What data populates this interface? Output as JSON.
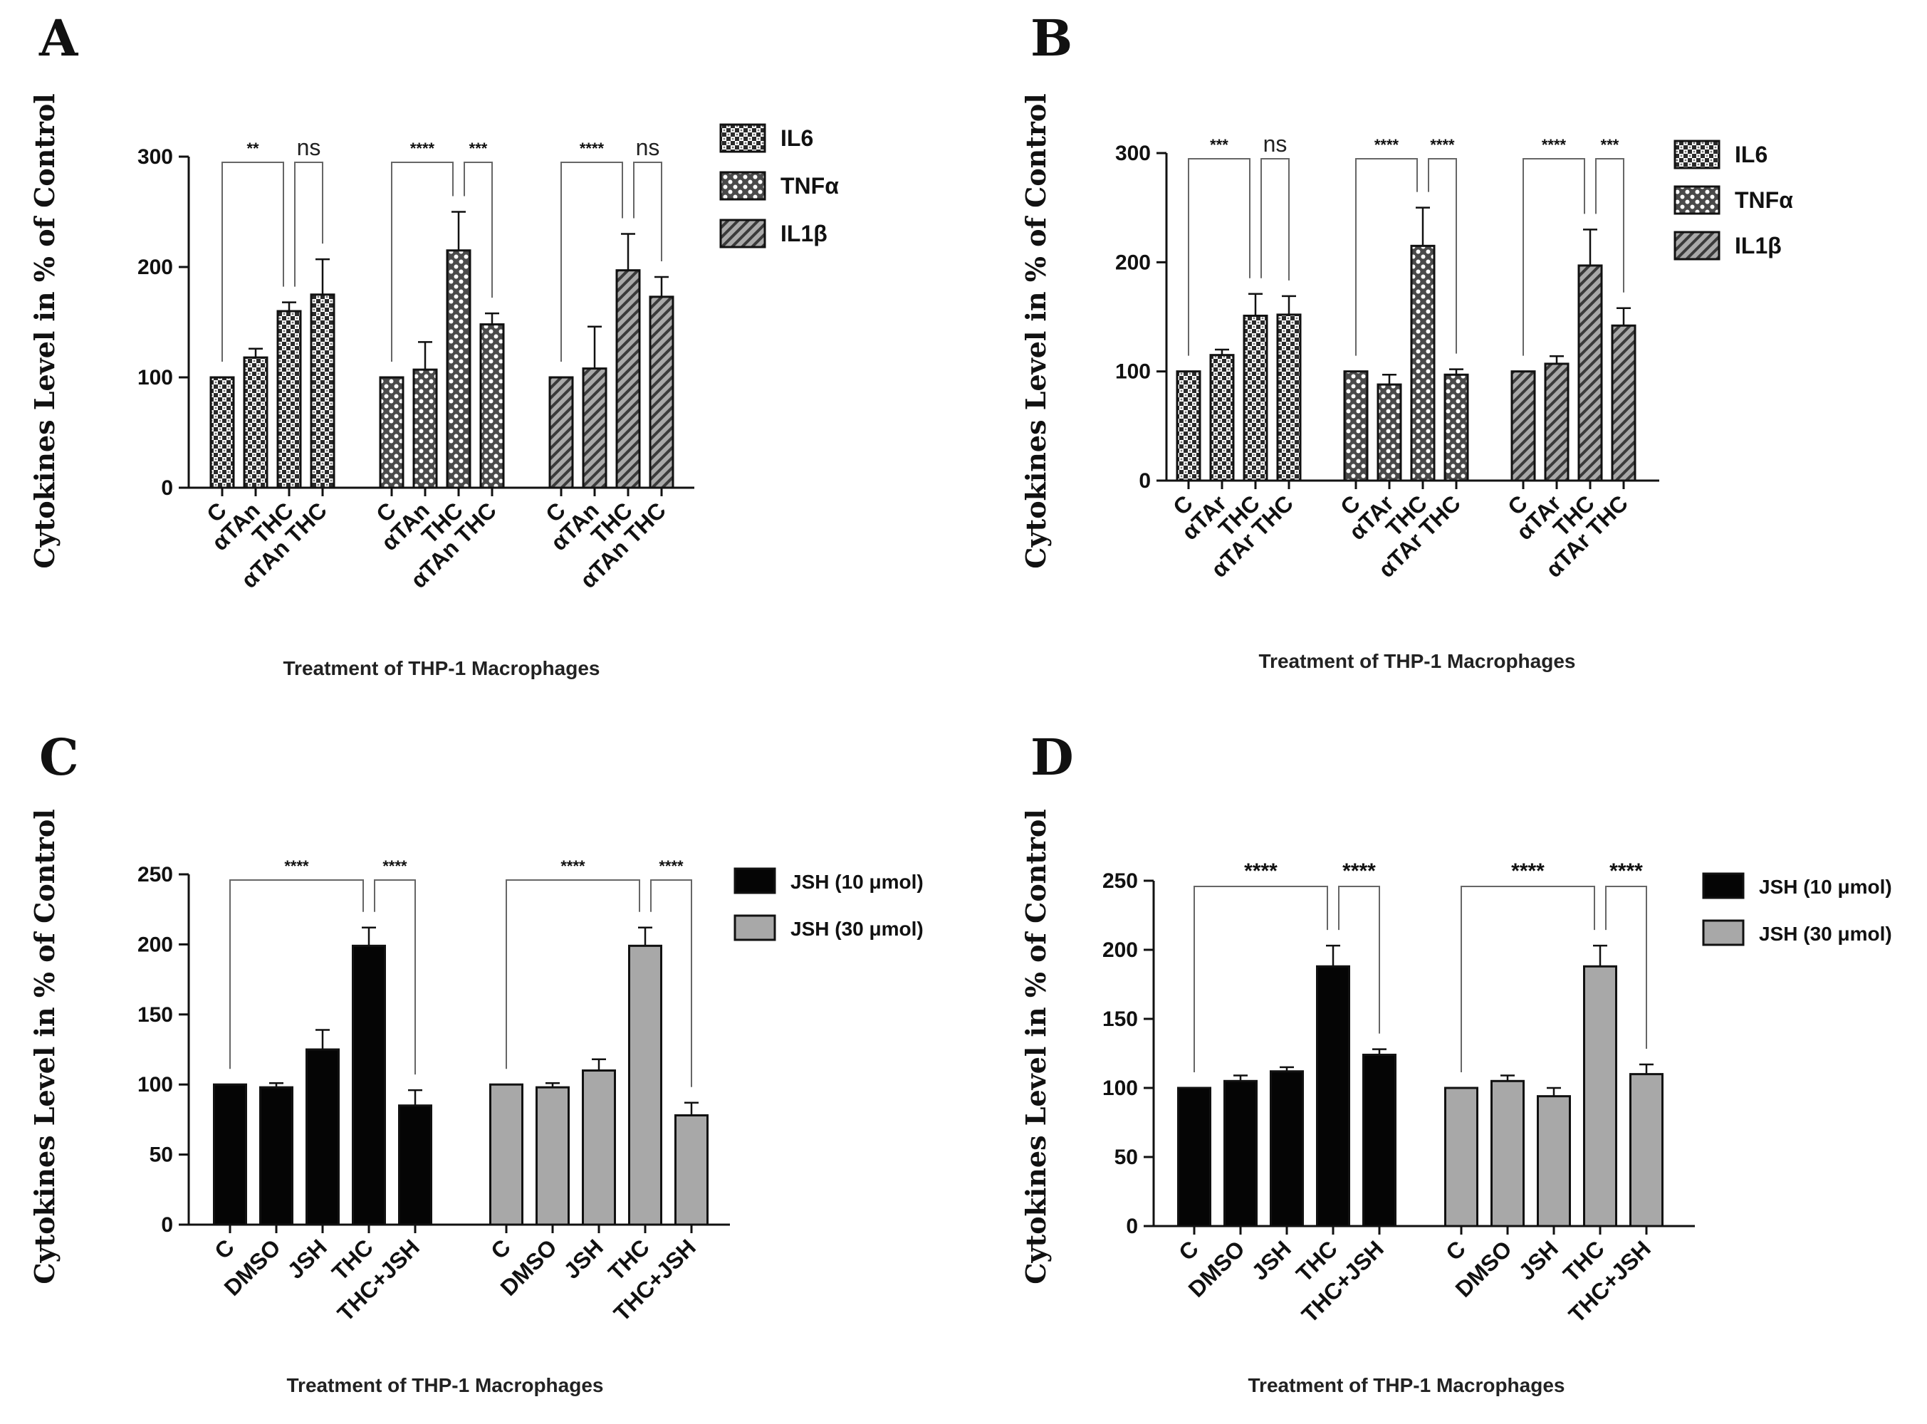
{
  "chart_data": [
    {
      "panel": "A",
      "type": "bar",
      "ylabel": "Cytokines Level  in % of Control",
      "xlabel": "Treatment of THP-1 Macrophages",
      "ylim": [
        0,
        300
      ],
      "yticks": [
        0,
        100,
        200,
        300
      ],
      "legend": [
        "IL6",
        "TNFα",
        "IL1β"
      ],
      "legend_position": "top-right",
      "groups": [
        {
          "name": "IL6",
          "pattern": "checker",
          "categories": [
            "C",
            "αTAn",
            "THC",
            "αTAn THC"
          ],
          "values": [
            100,
            118,
            160,
            175
          ],
          "errors": [
            0,
            8,
            8,
            32
          ],
          "sig": [
            {
              "label": "**",
              "from": 0,
              "to": 2
            },
            {
              "label": "ns",
              "from": 2,
              "to": 3
            }
          ]
        },
        {
          "name": "TNFα",
          "pattern": "dots",
          "categories": [
            "C",
            "αTAn",
            "THC",
            "αTAn THC"
          ],
          "values": [
            100,
            107,
            215,
            148
          ],
          "errors": [
            0,
            25,
            35,
            10
          ],
          "sig": [
            {
              "label": "****",
              "from": 0,
              "to": 2
            },
            {
              "label": "***",
              "from": 2,
              "to": 3
            }
          ]
        },
        {
          "name": "IL1β",
          "pattern": "hatch",
          "categories": [
            "C",
            "αTAn",
            "THC",
            "αTAn THC"
          ],
          "values": [
            100,
            108,
            197,
            173
          ],
          "errors": [
            0,
            38,
            33,
            18
          ],
          "sig": [
            {
              "label": "****",
              "from": 0,
              "to": 2
            },
            {
              "label": "ns",
              "from": 2,
              "to": 3
            }
          ]
        }
      ]
    },
    {
      "panel": "B",
      "type": "bar",
      "ylabel": "Cytokines Level  in % of Control",
      "xlabel": "Treatment of THP-1 Macrophages",
      "ylim": [
        0,
        300
      ],
      "yticks": [
        0,
        100,
        200,
        300
      ],
      "legend": [
        "IL6",
        "TNFα",
        "IL1β"
      ],
      "legend_position": "top-right",
      "groups": [
        {
          "name": "IL6",
          "pattern": "checker",
          "categories": [
            "C",
            "αTAr",
            "THC",
            "αTAr THC"
          ],
          "values": [
            100,
            115,
            151,
            152
          ],
          "errors": [
            0,
            5,
            20,
            17
          ],
          "sig": [
            {
              "label": "***",
              "from": 0,
              "to": 2
            },
            {
              "label": "ns",
              "from": 2,
              "to": 3
            }
          ]
        },
        {
          "name": "TNFα",
          "pattern": "dots",
          "categories": [
            "C",
            "αTAr",
            "THC",
            "αTAr THC"
          ],
          "values": [
            100,
            88,
            215,
            97
          ],
          "errors": [
            0,
            9,
            35,
            5
          ],
          "sig": [
            {
              "label": "****",
              "from": 0,
              "to": 2
            },
            {
              "label": "****",
              "from": 2,
              "to": 3
            }
          ]
        },
        {
          "name": "IL1β",
          "pattern": "hatch",
          "categories": [
            "C",
            "αTAr",
            "THC",
            "αTAr THC"
          ],
          "values": [
            100,
            107,
            197,
            142
          ],
          "errors": [
            0,
            7,
            33,
            16
          ],
          "sig": [
            {
              "label": "****",
              "from": 0,
              "to": 2
            },
            {
              "label": "***",
              "from": 2,
              "to": 3
            }
          ]
        }
      ]
    },
    {
      "panel": "C",
      "type": "bar",
      "ylabel": "Cytokines Level  in % of Control",
      "xlabel": "Treatment of THP-1 Macrophages",
      "ylim": [
        0,
        250
      ],
      "yticks": [
        0,
        50,
        100,
        150,
        200,
        250
      ],
      "legend": [
        "JSH (10 μmol)",
        "JSH (30 μmol)"
      ],
      "legend_position": "top-right",
      "groups": [
        {
          "name": "JSH (10 μmol)",
          "pattern": "black",
          "categories": [
            "C",
            "DMSO",
            "JSH",
            "THC",
            "THC+JSH"
          ],
          "values": [
            100,
            98,
            125,
            199,
            85
          ],
          "errors": [
            0,
            3,
            14,
            13,
            11
          ],
          "sig": [
            {
              "label": "****",
              "from": 0,
              "to": 3
            },
            {
              "label": "****",
              "from": 3,
              "to": 4
            }
          ]
        },
        {
          "name": "JSH (30 μmol)",
          "pattern": "gray",
          "categories": [
            "C",
            "DMSO",
            "JSH",
            "THC",
            "THC+JSH"
          ],
          "values": [
            100,
            98,
            110,
            199,
            78
          ],
          "errors": [
            0,
            3,
            8,
            13,
            9
          ],
          "sig": [
            {
              "label": "****",
              "from": 0,
              "to": 3
            },
            {
              "label": "****",
              "from": 3,
              "to": 4
            }
          ]
        }
      ]
    },
    {
      "panel": "D",
      "type": "bar",
      "ylabel": "Cytokines Level  in % of Control",
      "xlabel": "Treatment of THP-1 Macrophages",
      "ylim": [
        0,
        250
      ],
      "yticks": [
        0,
        50,
        100,
        150,
        200,
        250
      ],
      "legend": [
        "JSH (10 μmol)",
        "JSH (30 μmol)"
      ],
      "legend_position": "top-right",
      "groups": [
        {
          "name": "JSH (10 μmol)",
          "pattern": "black",
          "categories": [
            "C",
            "DMSO",
            "JSH",
            "THC",
            "THC+JSH"
          ],
          "values": [
            100,
            105,
            112,
            188,
            124
          ],
          "errors": [
            0,
            4,
            3,
            15,
            4
          ],
          "sig": [
            {
              "label": "****",
              "from": 0,
              "to": 3
            },
            {
              "label": "****",
              "from": 3,
              "to": 4
            }
          ]
        },
        {
          "name": "JSH (30 μmol)",
          "pattern": "gray",
          "categories": [
            "C",
            "DMSO",
            "JSH",
            "THC",
            "THC+JSH"
          ],
          "values": [
            100,
            105,
            94,
            188,
            110
          ],
          "errors": [
            0,
            4,
            6,
            15,
            7
          ],
          "sig": [
            {
              "label": "****",
              "from": 0,
              "to": 3
            },
            {
              "label": "****",
              "from": 3,
              "to": 4
            }
          ]
        }
      ]
    }
  ]
}
